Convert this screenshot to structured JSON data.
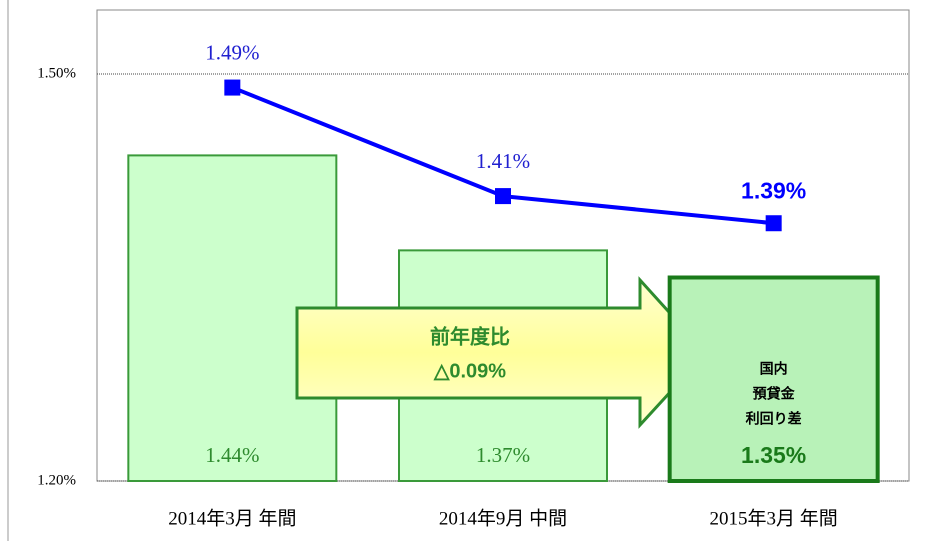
{
  "chart_data": {
    "type": "bar",
    "categories": [
      "2014年3月 年間",
      "2014年9月 中間",
      "2015年3月 年間"
    ],
    "series": [
      {
        "type": "bar",
        "color": "#ccffcc",
        "values": [
          1.44,
          1.37,
          1.35
        ],
        "value_labels": [
          "1.44%",
          "1.37%",
          "1.35%"
        ]
      },
      {
        "type": "line",
        "color": "#0000ff",
        "values": [
          1.49,
          1.41,
          1.39
        ],
        "value_labels": [
          "1.49%",
          "1.41%",
          "1.39%"
        ]
      }
    ],
    "ylim": [
      1.2,
      1.55
    ],
    "yticks": [
      {
        "value": 1.2,
        "label": "1.20%"
      },
      {
        "value": 1.5,
        "label": "1.50%"
      }
    ],
    "grid": true,
    "annotations": [
      {
        "lines": [
          "前年度比",
          "△0.09%"
        ]
      },
      {
        "lines": [
          "国内",
          "預貸金",
          "利回り差"
        ]
      }
    ]
  }
}
